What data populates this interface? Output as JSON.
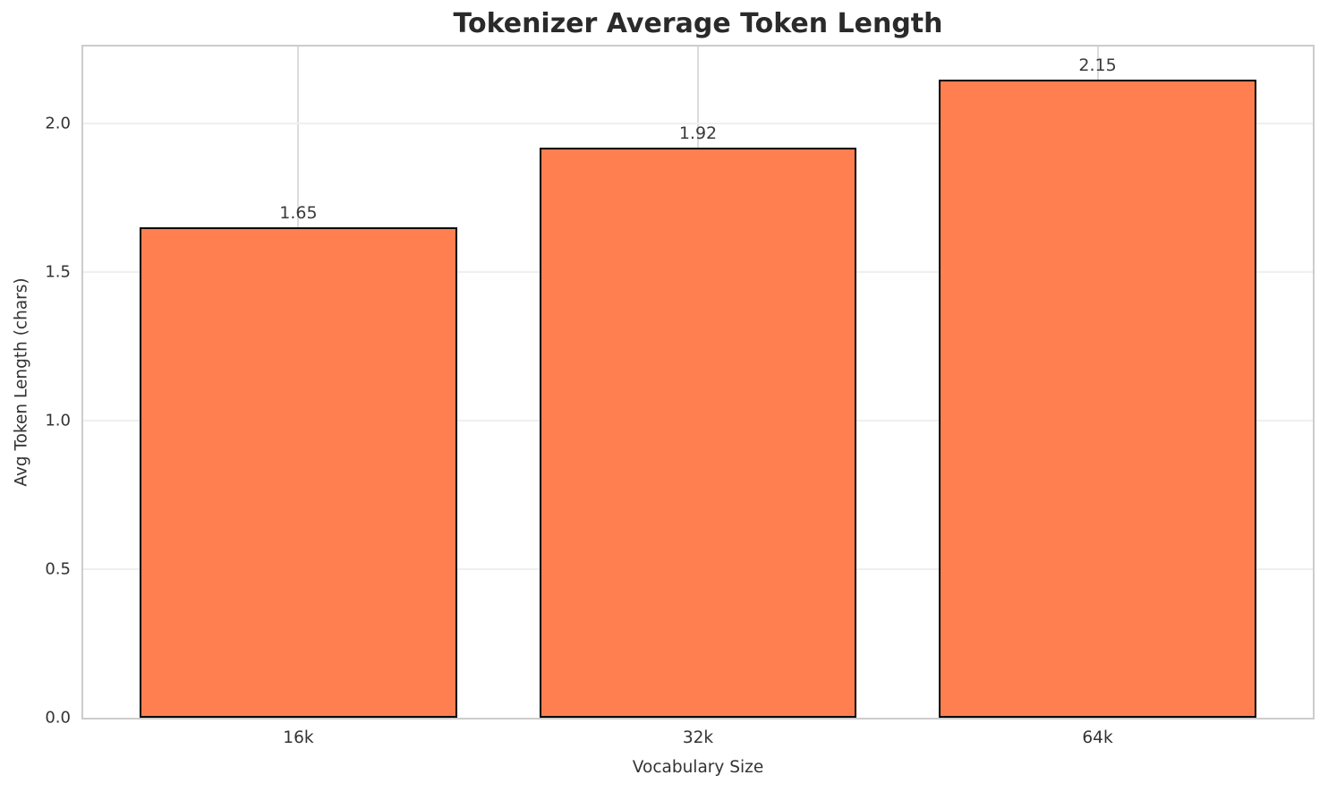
{
  "chart_data": {
    "type": "bar",
    "title": "Tokenizer Average Token Length",
    "xlabel": "Vocabulary Size",
    "ylabel": "Avg Token Length (chars)",
    "categories": [
      "16k",
      "32k",
      "64k"
    ],
    "values": [
      1.65,
      1.92,
      2.15
    ],
    "value_labels": [
      "1.65",
      "1.92",
      "2.15"
    ],
    "yticks": [
      0.0,
      0.5,
      1.0,
      1.5,
      2.0
    ],
    "ytick_labels": [
      "0.0",
      "0.5",
      "1.0",
      "1.5",
      "2.0"
    ],
    "ylim": [
      0,
      2.26
    ],
    "grid": true,
    "legend": null,
    "bar_color": "#ff7f50",
    "bar_edge_color": "#000000",
    "background_color": "#ffffff",
    "frame_color": "#cccccc",
    "gridline_h_color": "#efefef",
    "gridline_v_color": "#dcdcdc",
    "title_color": "#2a2a2a",
    "tick_label_color": "#333333"
  }
}
